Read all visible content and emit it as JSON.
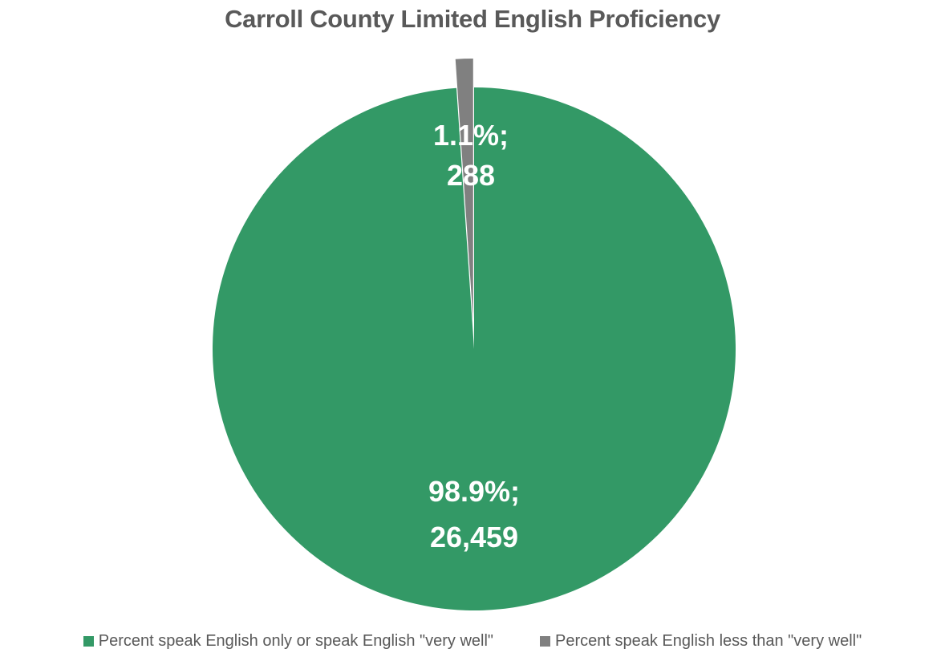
{
  "chart_data": {
    "type": "pie",
    "title": "Carroll County Limited English Proficiency",
    "slices": [
      {
        "name": "Percent speak English only or speak English \"very well\"",
        "value": 26459,
        "percent": 98.9,
        "label_line1": "98.9%;",
        "label_line2": "26,459",
        "color": "#339966",
        "exploded": false
      },
      {
        "name": "Percent speak English less than \"very well\"",
        "value": 288,
        "percent": 1.1,
        "label_line1": "1.1%;",
        "label_line2": "288",
        "color": "#808080",
        "exploded": true
      }
    ],
    "legend_position": "bottom",
    "start_angle_deg": 0
  }
}
